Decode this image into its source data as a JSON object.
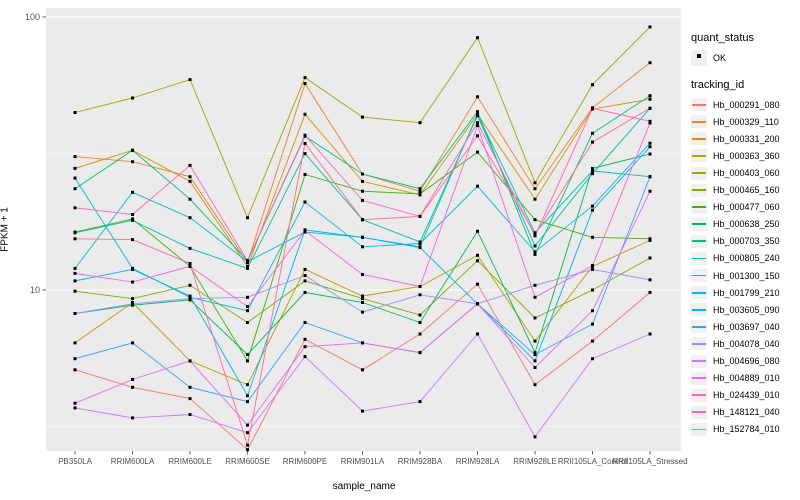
{
  "chart_data": {
    "type": "line",
    "title": "",
    "xlabel": "sample_name",
    "ylabel": "FPKM + 1",
    "yscale": "log10",
    "ylim": [
      2.5,
      110
    ],
    "yticks": [
      {
        "value": 10,
        "label": "10"
      },
      {
        "value": 100,
        "label": "100"
      }
    ],
    "minor_gridlines": [
      3.1623,
      31.623
    ],
    "grid": true,
    "legend_position": "right",
    "panel_bg": "#EBEBEB",
    "grid_color": "#FFFFFF",
    "point_color": "#000000",
    "tick_color": "#333333",
    "tick_text_color": "#4D4D4D",
    "categories": [
      "PB350LA",
      "RRIM600LA",
      "RRIM600LE",
      "RRIM600SE",
      "RRIM600PE",
      "RRIM901LA",
      "RRIM928BA",
      "RRIM928LA",
      "RRIM928LE",
      "RRII105LA_Control",
      "RRII105LA_Stressed"
    ],
    "series": [
      {
        "name": "Hb_000291_080",
        "color": "#F8766D",
        "values": [
          5.1,
          4.4,
          4.0,
          2.6,
          6.6,
          5.1,
          6.9,
          10.5,
          4.5,
          6.5,
          9.8
        ]
      },
      {
        "name": "Hb_000329_110",
        "color": "#EA8331",
        "values": [
          30.8,
          29.5,
          26.0,
          12.6,
          57.0,
          26.6,
          23.0,
          51.0,
          23.5,
          46.5,
          68.0
        ]
      },
      {
        "name": "Hb_000331_200",
        "color": "#D89000",
        "values": [
          27.9,
          32.5,
          25.0,
          12.2,
          44.0,
          25.0,
          22.3,
          44.0,
          21.5,
          46.0,
          50.0
        ]
      },
      {
        "name": "Hb_000363_360",
        "color": "#C09B00",
        "values": [
          6.4,
          9.0,
          5.5,
          4.5,
          11.9,
          9.5,
          10.3,
          13.4,
          6.5,
          12.2,
          15.2
        ]
      },
      {
        "name": "Hb_000403_060",
        "color": "#A3A500",
        "values": [
          44.7,
          50.5,
          59.0,
          18.4,
          60.0,
          43.0,
          41.0,
          84.0,
          24.7,
          56.5,
          92.0
        ]
      },
      {
        "name": "Hb_000465_160",
        "color": "#7CAE00",
        "values": [
          9.9,
          9.3,
          10.4,
          7.6,
          10.8,
          9.3,
          8.1,
          12.8,
          7.9,
          10.0,
          13.1
        ]
      },
      {
        "name": "Hb_000477_060",
        "color": "#39B600",
        "values": [
          16.3,
          18.2,
          12.2,
          5.5,
          26.5,
          23.0,
          22.5,
          32.0,
          18.1,
          15.6,
          15.4
        ]
      },
      {
        "name": "Hb_000638_250",
        "color": "#00BB4E",
        "values": [
          8.2,
          8.8,
          9.2,
          5.8,
          9.8,
          9.0,
          7.6,
          16.4,
          5.9,
          27.9,
          31.5
        ]
      },
      {
        "name": "Hb_000703_350",
        "color": "#00BF7D",
        "values": [
          23.5,
          32.5,
          21.5,
          12.8,
          36.6,
          26.6,
          23.5,
          45.0,
          13.5,
          37.5,
          51.5
        ]
      },
      {
        "name": "Hb_000805_240",
        "color": "#00C1A3",
        "values": [
          16.2,
          18.0,
          14.2,
          12.0,
          31.6,
          18.1,
          15.0,
          43.5,
          14.5,
          26.7,
          46.3
        ]
      },
      {
        "name": "Hb_001300_150",
        "color": "#00BFC4",
        "values": [
          12.0,
          22.8,
          18.4,
          12.7,
          16.3,
          15.6,
          14.4,
          44.0,
          16.2,
          27.3,
          26.0
        ]
      },
      {
        "name": "Hb_001799_210",
        "color": "#00BAE0",
        "values": [
          25.7,
          12.0,
          9.4,
          8.4,
          21.0,
          14.4,
          14.8,
          24.0,
          13.8,
          20.3,
          34.5
        ]
      },
      {
        "name": "Hb_003605_090",
        "color": "#00B0F6",
        "values": [
          10.8,
          11.9,
          9.5,
          4.1,
          16.6,
          15.6,
          14.3,
          8.9,
          5.5,
          19.6,
          33.5
        ]
      },
      {
        "name": "Hb_003697_040",
        "color": "#35A2FF",
        "values": [
          5.6,
          6.4,
          4.4,
          3.9,
          7.6,
          6.4,
          5.9,
          8.9,
          5.8,
          7.5,
          26.0
        ]
      },
      {
        "name": "Hb_004078_040",
        "color": "#9590FF",
        "values": [
          8.2,
          8.9,
          9.3,
          9.4,
          11.3,
          8.3,
          9.6,
          8.9,
          10.4,
          11.9,
          10.9
        ]
      },
      {
        "name": "Hb_004696_080",
        "color": "#C77CFF",
        "values": [
          3.7,
          3.4,
          3.5,
          3.0,
          5.7,
          3.6,
          3.9,
          6.9,
          2.9,
          5.6,
          6.9
        ]
      },
      {
        "name": "Hb_004889_010",
        "color": "#E76BF3",
        "values": [
          3.85,
          4.7,
          5.5,
          3.2,
          6.2,
          6.4,
          5.9,
          8.9,
          5.2,
          8.4,
          23.0
        ]
      },
      {
        "name": "Hb_024439_010",
        "color": "#FA62DB",
        "values": [
          11.5,
          10.7,
          12.2,
          8.7,
          16.5,
          11.4,
          10.3,
          40.0,
          9.4,
          12.3,
          40.9
        ]
      },
      {
        "name": "Hb_148121_040",
        "color": "#FF62BC",
        "values": [
          20.0,
          18.9,
          28.6,
          12.8,
          36.9,
          21.3,
          18.6,
          41.0,
          15.8,
          46.3,
          41.5
        ]
      },
      {
        "name": "Hb_152784_010",
        "color": "#FF6A98",
        "values": [
          15.4,
          15.3,
          12.5,
          2.7,
          34.4,
          18.1,
          18.6,
          36.7,
          16.0,
          34.8,
          46.3
        ]
      }
    ]
  },
  "legend": {
    "quant_status_title": "quant_status",
    "quant_status_items": [
      {
        "label": "OK",
        "marker": "point-icon"
      }
    ],
    "tracking_title": "tracking_id"
  }
}
